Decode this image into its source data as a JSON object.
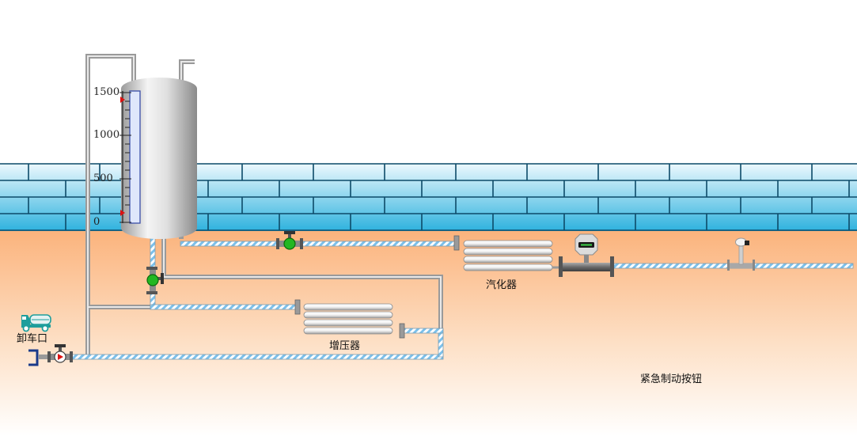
{
  "tank": {
    "scale_labels": [
      "1500",
      "1000",
      "500",
      "0"
    ],
    "max_marker": 1500,
    "min_marker": 0
  },
  "labels": {
    "vaporizer": "汽化器",
    "booster": "增压器",
    "unloading": "卸车口",
    "emergency_button": "紧急制动按钮"
  },
  "colors": {
    "sky": "#ffffff",
    "wall_light": "#e6f6fd",
    "wall_dark": "#2eb2de",
    "wall_line": "#0d4a68",
    "ground_top": "#fbb57f",
    "ground_bottom": "#ffffff",
    "valve_on": "#22b722",
    "valve_off": "#ffffff",
    "truck": "#1e9e9c"
  },
  "icons": [
    "truck-icon",
    "valve-icon",
    "flowmeter-icon",
    "sensor-icon",
    "level-gauge-icon"
  ]
}
